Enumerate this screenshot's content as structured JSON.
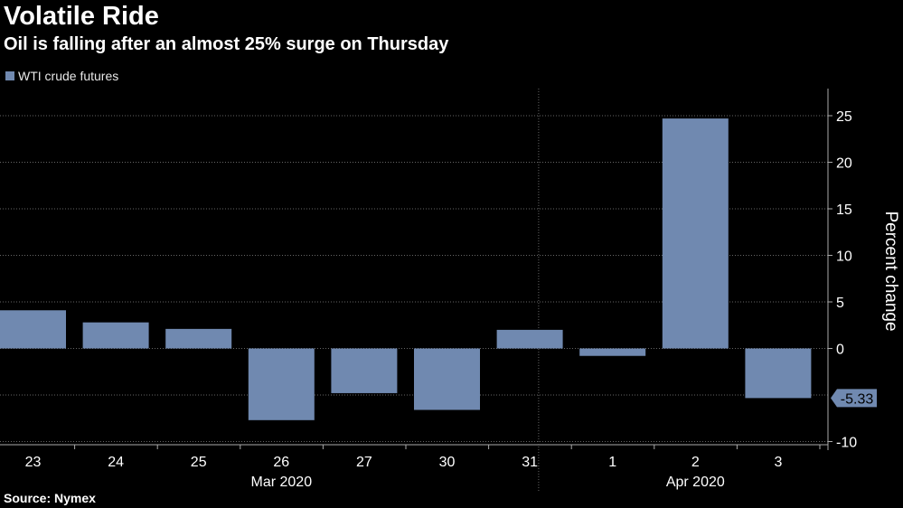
{
  "title": "Volatile Ride",
  "subtitle": "Oil is falling after an almost 25% surge on Thursday",
  "source": "Source: Nymex",
  "colors": {
    "bar": "#7089b0",
    "background": "#000000",
    "grid": "#555555"
  },
  "chart_data": {
    "type": "bar",
    "categories": [
      "23",
      "24",
      "25",
      "26",
      "27",
      "30",
      "31",
      "1",
      "2",
      "3"
    ],
    "month_labels": [
      {
        "label": "Mar 2020",
        "categories": [
          "23",
          "24",
          "25",
          "26",
          "27",
          "30",
          "31"
        ]
      },
      {
        "label": "Apr 2020",
        "categories": [
          "1",
          "2",
          "3"
        ]
      }
    ],
    "series": [
      {
        "name": "WTI crude futures",
        "values": [
          4.1,
          2.8,
          2.1,
          -7.7,
          -4.8,
          -6.6,
          2.0,
          -0.8,
          24.7,
          -5.33
        ]
      }
    ],
    "last_value_label": "-5.33",
    "ylabel": "Percent change",
    "ylim": [
      -11,
      28
    ],
    "yticks": [
      -10,
      0,
      5,
      10,
      15,
      20,
      25
    ],
    "ytick_labels": [
      "-10",
      "0",
      "5",
      "10",
      "15",
      "20",
      "25"
    ],
    "grid": true,
    "y_axis_position": "right",
    "legend_position": "top-left"
  }
}
